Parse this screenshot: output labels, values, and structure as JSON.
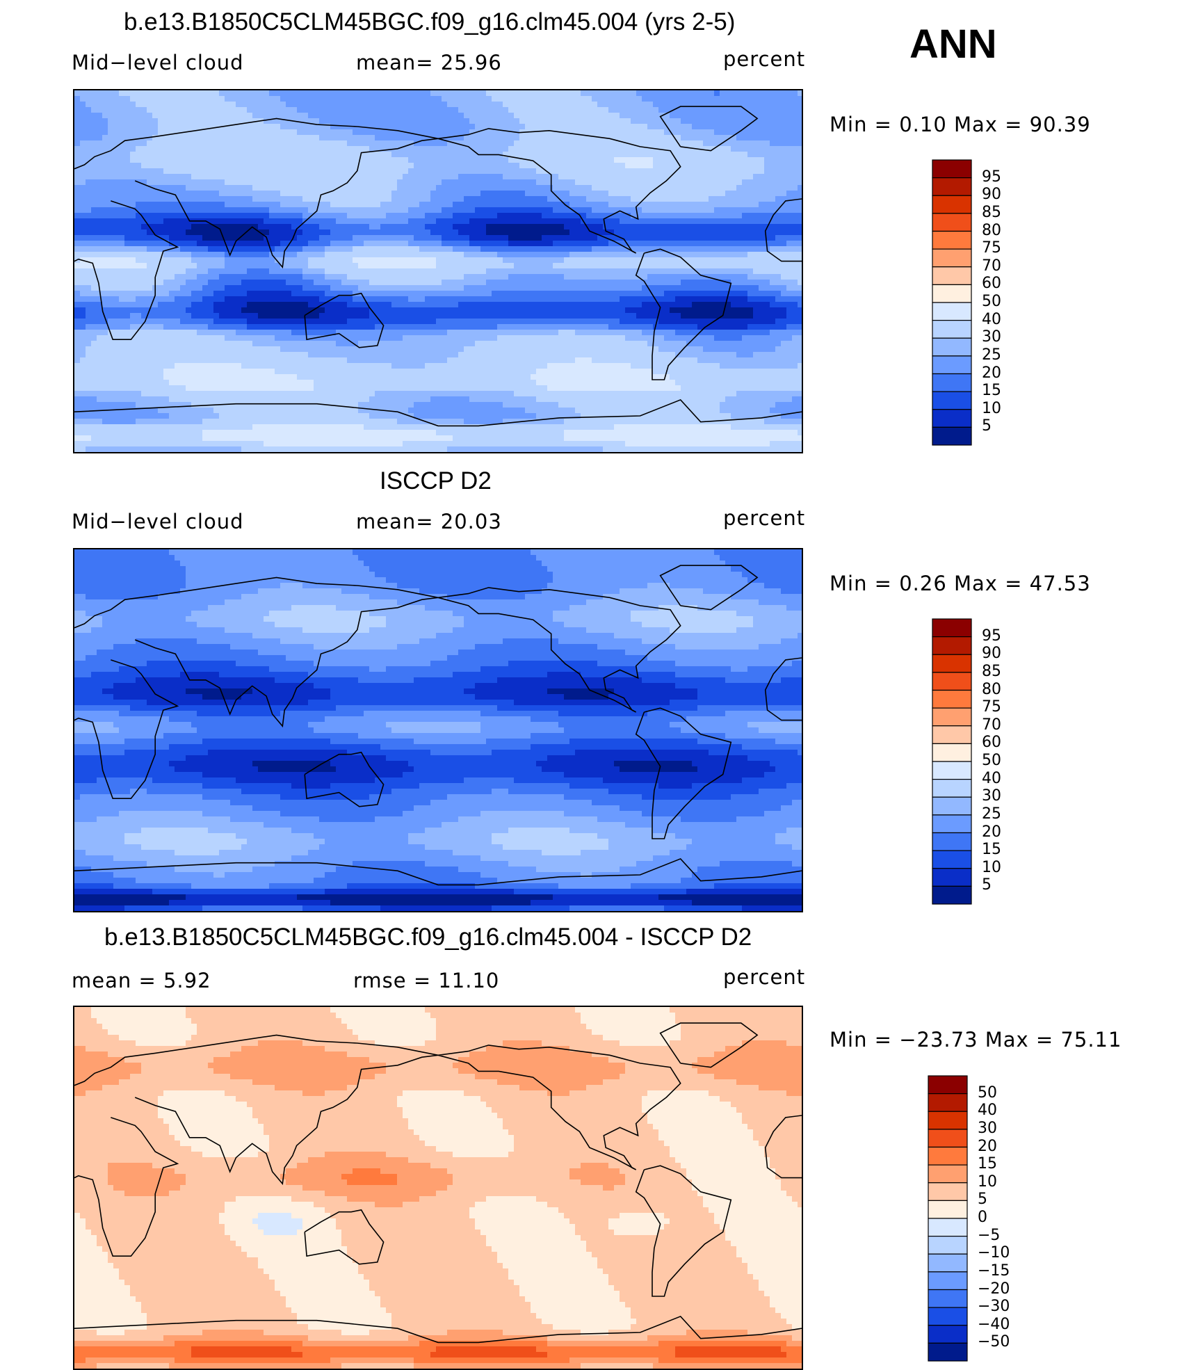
{
  "season": "ANN",
  "panels": [
    {
      "title": "b.e13.B1850C5CLM45BGC.f09_g16.clm45.004 (yrs 2-5)",
      "left_label": "Mid−level cloud",
      "mid_label": "mean=   25.96",
      "units": "percent",
      "minmax": "Min  =     0.10  Max  =    90.39"
    },
    {
      "title": "ISCCP D2",
      "left_label": "Mid−level cloud",
      "mid_label": "mean=   20.03",
      "units": "percent",
      "minmax": "Min  =     0.26  Max  =    47.53"
    },
    {
      "title": "b.e13.B1850C5CLM45BGC.f09_g16.clm45.004 - ISCCP D2",
      "left_label": "mean  =      5.92",
      "mid_label": "rmse  =    11.10",
      "units": "percent",
      "minmax": "Min  = −23.73  Max  =    75.11"
    }
  ],
  "chart_data": [
    {
      "type": "heatmap",
      "title": "b.e13.B1850C5CLM45BGC.f09_g16.clm45.004 (yrs 2-5)",
      "variable": "Mid-level cloud",
      "units": "percent",
      "mean": 25.96,
      "min": 0.1,
      "max": 90.39,
      "colorbar_levels": [
        "95",
        "90",
        "85",
        "80",
        "75",
        "70",
        "60",
        "50",
        "40",
        "30",
        "25",
        "20",
        "15",
        "10",
        "5"
      ],
      "colorbar_colors": [
        "#8b0000",
        "#b31a00",
        "#d93300",
        "#f04f1a",
        "#ff7a3d",
        "#ffa070",
        "#ffc8a8",
        "#fff0e0",
        "#d8e8ff",
        "#b8d4ff",
        "#92b8ff",
        "#6b9bff",
        "#3f76f5",
        "#1a4fe6",
        "#0a2ec8",
        "#001b8c"
      ],
      "map_style": "model"
    },
    {
      "type": "heatmap",
      "title": "ISCCP D2",
      "variable": "Mid-level cloud",
      "units": "percent",
      "mean": 20.03,
      "min": 0.26,
      "max": 47.53,
      "colorbar_levels": [
        "95",
        "90",
        "85",
        "80",
        "75",
        "70",
        "60",
        "50",
        "40",
        "30",
        "25",
        "20",
        "15",
        "10",
        "5"
      ],
      "colorbar_colors": [
        "#8b0000",
        "#b31a00",
        "#d93300",
        "#f04f1a",
        "#ff7a3d",
        "#ffa070",
        "#ffc8a8",
        "#fff0e0",
        "#d8e8ff",
        "#b8d4ff",
        "#92b8ff",
        "#6b9bff",
        "#3f76f5",
        "#1a4fe6",
        "#0a2ec8",
        "#001b8c"
      ],
      "map_style": "obs"
    },
    {
      "type": "heatmap",
      "title": "b.e13.B1850C5CLM45BGC.f09_g16.clm45.004 - ISCCP D2",
      "units": "percent",
      "mean": 5.92,
      "rmse": 11.1,
      "min": -23.73,
      "max": 75.11,
      "colorbar_levels": [
        "50",
        "40",
        "30",
        "20",
        "15",
        "10",
        "5",
        "0",
        "−5",
        "−10",
        "−15",
        "−20",
        "−30",
        "−40",
        "−50"
      ],
      "colorbar_colors": [
        "#8b0000",
        "#b31a00",
        "#d93300",
        "#f04f1a",
        "#ff7a3d",
        "#ffa070",
        "#ffc8a8",
        "#fff0e0",
        "#d8e8ff",
        "#b8d4ff",
        "#92b8ff",
        "#6b9bff",
        "#3f76f5",
        "#1a4fe6",
        "#0a2ec8",
        "#001b8c"
      ],
      "map_style": "diff"
    }
  ]
}
